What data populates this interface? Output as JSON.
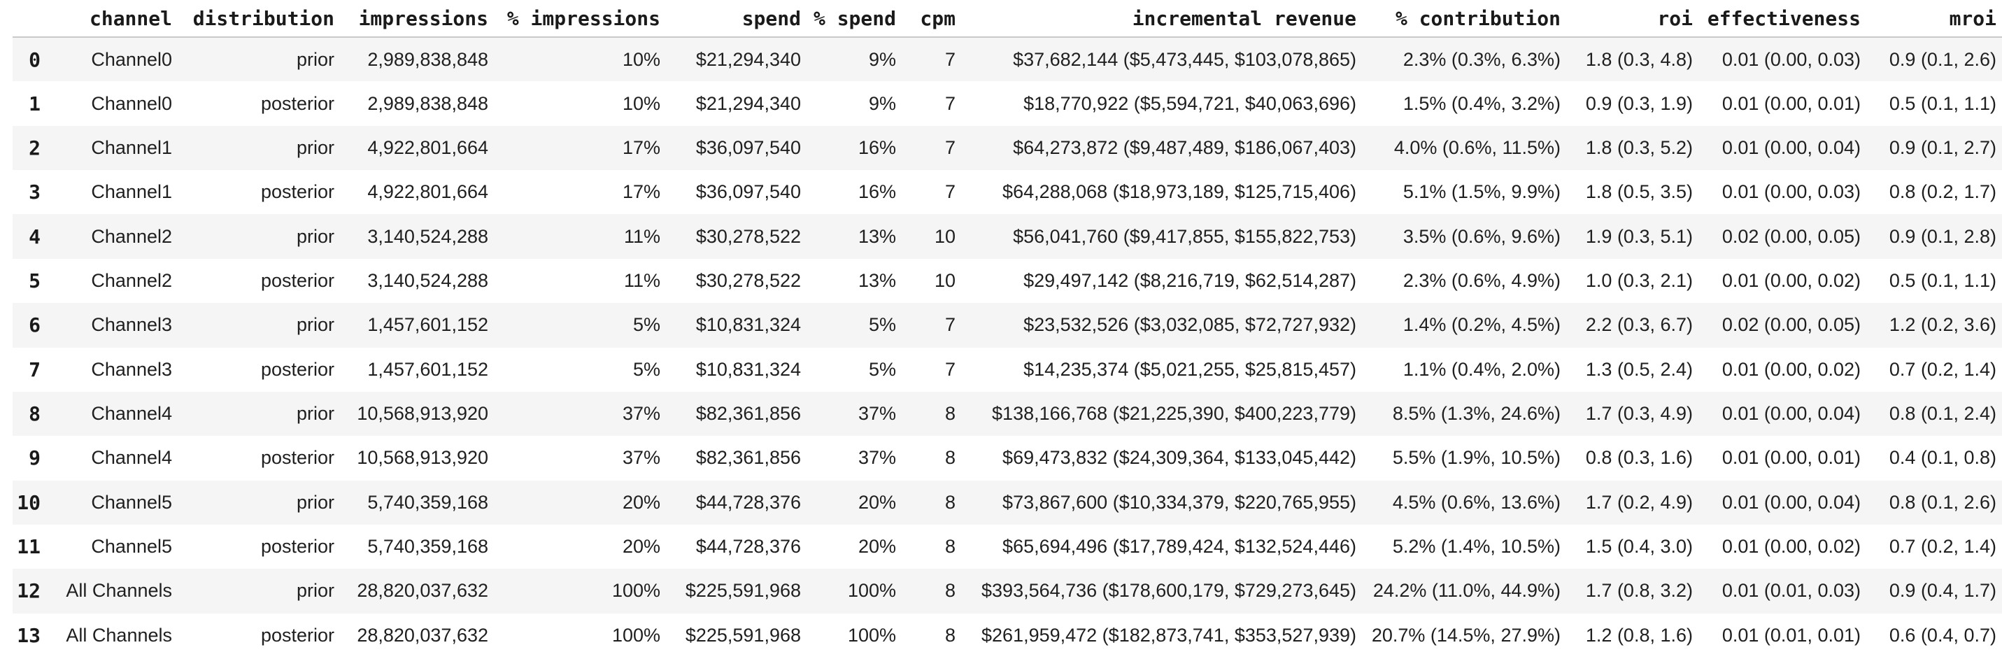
{
  "colors": {
    "row_stripe": "#f5f5f5",
    "row_plain": "#ffffff",
    "header_rule": "#c9c9c9",
    "text": "#1f1f1f"
  },
  "table": {
    "columns": [
      "",
      "channel",
      "distribution",
      "impressions",
      "% impressions",
      "spend",
      "% spend",
      "cpm",
      "incremental revenue",
      "% contribution",
      "roi",
      "effectiveness",
      "mroi"
    ],
    "rows": [
      [
        "0",
        "Channel0",
        "prior",
        "2,989,838,848",
        "10%",
        "$21,294,340",
        "9%",
        "7",
        "$37,682,144 ($5,473,445, $103,078,865)",
        "2.3% (0.3%, 6.3%)",
        "1.8 (0.3, 4.8)",
        "0.01 (0.00, 0.03)",
        "0.9 (0.1, 2.6)"
      ],
      [
        "1",
        "Channel0",
        "posterior",
        "2,989,838,848",
        "10%",
        "$21,294,340",
        "9%",
        "7",
        "$18,770,922 ($5,594,721, $40,063,696)",
        "1.5% (0.4%, 3.2%)",
        "0.9 (0.3, 1.9)",
        "0.01 (0.00, 0.01)",
        "0.5 (0.1, 1.1)"
      ],
      [
        "2",
        "Channel1",
        "prior",
        "4,922,801,664",
        "17%",
        "$36,097,540",
        "16%",
        "7",
        "$64,273,872 ($9,487,489, $186,067,403)",
        "4.0% (0.6%, 11.5%)",
        "1.8 (0.3, 5.2)",
        "0.01 (0.00, 0.04)",
        "0.9 (0.1, 2.7)"
      ],
      [
        "3",
        "Channel1",
        "posterior",
        "4,922,801,664",
        "17%",
        "$36,097,540",
        "16%",
        "7",
        "$64,288,068 ($18,973,189, $125,715,406)",
        "5.1% (1.5%, 9.9%)",
        "1.8 (0.5, 3.5)",
        "0.01 (0.00, 0.03)",
        "0.8 (0.2, 1.7)"
      ],
      [
        "4",
        "Channel2",
        "prior",
        "3,140,524,288",
        "11%",
        "$30,278,522",
        "13%",
        "10",
        "$56,041,760 ($9,417,855, $155,822,753)",
        "3.5% (0.6%, 9.6%)",
        "1.9 (0.3, 5.1)",
        "0.02 (0.00, 0.05)",
        "0.9 (0.1, 2.8)"
      ],
      [
        "5",
        "Channel2",
        "posterior",
        "3,140,524,288",
        "11%",
        "$30,278,522",
        "13%",
        "10",
        "$29,497,142 ($8,216,719, $62,514,287)",
        "2.3% (0.6%, 4.9%)",
        "1.0 (0.3, 2.1)",
        "0.01 (0.00, 0.02)",
        "0.5 (0.1, 1.1)"
      ],
      [
        "6",
        "Channel3",
        "prior",
        "1,457,601,152",
        "5%",
        "$10,831,324",
        "5%",
        "7",
        "$23,532,526 ($3,032,085, $72,727,932)",
        "1.4% (0.2%, 4.5%)",
        "2.2 (0.3, 6.7)",
        "0.02 (0.00, 0.05)",
        "1.2 (0.2, 3.6)"
      ],
      [
        "7",
        "Channel3",
        "posterior",
        "1,457,601,152",
        "5%",
        "$10,831,324",
        "5%",
        "7",
        "$14,235,374 ($5,021,255, $25,815,457)",
        "1.1% (0.4%, 2.0%)",
        "1.3 (0.5, 2.4)",
        "0.01 (0.00, 0.02)",
        "0.7 (0.2, 1.4)"
      ],
      [
        "8",
        "Channel4",
        "prior",
        "10,568,913,920",
        "37%",
        "$82,361,856",
        "37%",
        "8",
        "$138,166,768 ($21,225,390, $400,223,779)",
        "8.5% (1.3%, 24.6%)",
        "1.7 (0.3, 4.9)",
        "0.01 (0.00, 0.04)",
        "0.8 (0.1, 2.4)"
      ],
      [
        "9",
        "Channel4",
        "posterior",
        "10,568,913,920",
        "37%",
        "$82,361,856",
        "37%",
        "8",
        "$69,473,832 ($24,309,364, $133,045,442)",
        "5.5% (1.9%, 10.5%)",
        "0.8 (0.3, 1.6)",
        "0.01 (0.00, 0.01)",
        "0.4 (0.1, 0.8)"
      ],
      [
        "10",
        "Channel5",
        "prior",
        "5,740,359,168",
        "20%",
        "$44,728,376",
        "20%",
        "8",
        "$73,867,600 ($10,334,379, $220,765,955)",
        "4.5% (0.6%, 13.6%)",
        "1.7 (0.2, 4.9)",
        "0.01 (0.00, 0.04)",
        "0.8 (0.1, 2.6)"
      ],
      [
        "11",
        "Channel5",
        "posterior",
        "5,740,359,168",
        "20%",
        "$44,728,376",
        "20%",
        "8",
        "$65,694,496 ($17,789,424, $132,524,446)",
        "5.2% (1.4%, 10.5%)",
        "1.5 (0.4, 3.0)",
        "0.01 (0.00, 0.02)",
        "0.7 (0.2, 1.4)"
      ],
      [
        "12",
        "All Channels",
        "prior",
        "28,820,037,632",
        "100%",
        "$225,591,968",
        "100%",
        "8",
        "$393,564,736 ($178,600,179, $729,273,645)",
        "24.2% (11.0%, 44.9%)",
        "1.7 (0.8, 3.2)",
        "0.01 (0.01, 0.03)",
        "0.9 (0.4, 1.7)"
      ],
      [
        "13",
        "All Channels",
        "posterior",
        "28,820,037,632",
        "100%",
        "$225,591,968",
        "100%",
        "8",
        "$261,959,472 ($182,873,741, $353,527,939)",
        "20.7% (14.5%, 27.9%)",
        "1.2 (0.8, 1.6)",
        "0.01 (0.01, 0.01)",
        "0.6 (0.4, 0.7)"
      ]
    ]
  }
}
